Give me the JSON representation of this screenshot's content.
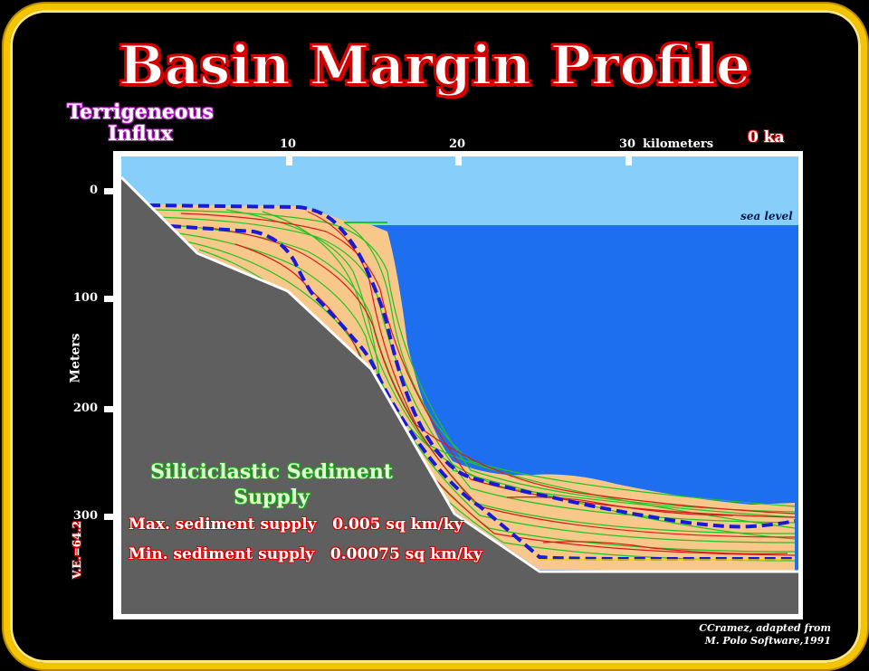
{
  "title": "Basin Margin Profile",
  "influx_label": "Terrigeneous Influx",
  "time_label": "0 ka",
  "x_axis": {
    "ticks": [
      "10",
      "20",
      "30"
    ],
    "unit": "kilometers"
  },
  "y_axis": {
    "label": "Meters",
    "ticks": [
      "0",
      "100",
      "200",
      "300"
    ]
  },
  "sea_level_label": "sea level",
  "vertical_exaggeration": "V.E.=64.2",
  "supply": {
    "title_line1": "Siliciclastic Sediment",
    "title_line2": "Supply",
    "max": "Max. sediment supply   0.005 sq km/ky",
    "min": "Min. sediment supply   0.00075 sq km/ky"
  },
  "credit": {
    "line1": "CCramez, adapted  from",
    "line2": "M. Polo Software,1991"
  },
  "colors": {
    "frame": "#f5c400",
    "sky": "#87cefa",
    "sea": "#1e6ef0",
    "bedrock": "#5f5f5f",
    "sediment": "#f7c88a",
    "layer_green": "#22c322",
    "layer_red": "#d81b1b",
    "surface_dashed": "#1a1ad6"
  }
}
